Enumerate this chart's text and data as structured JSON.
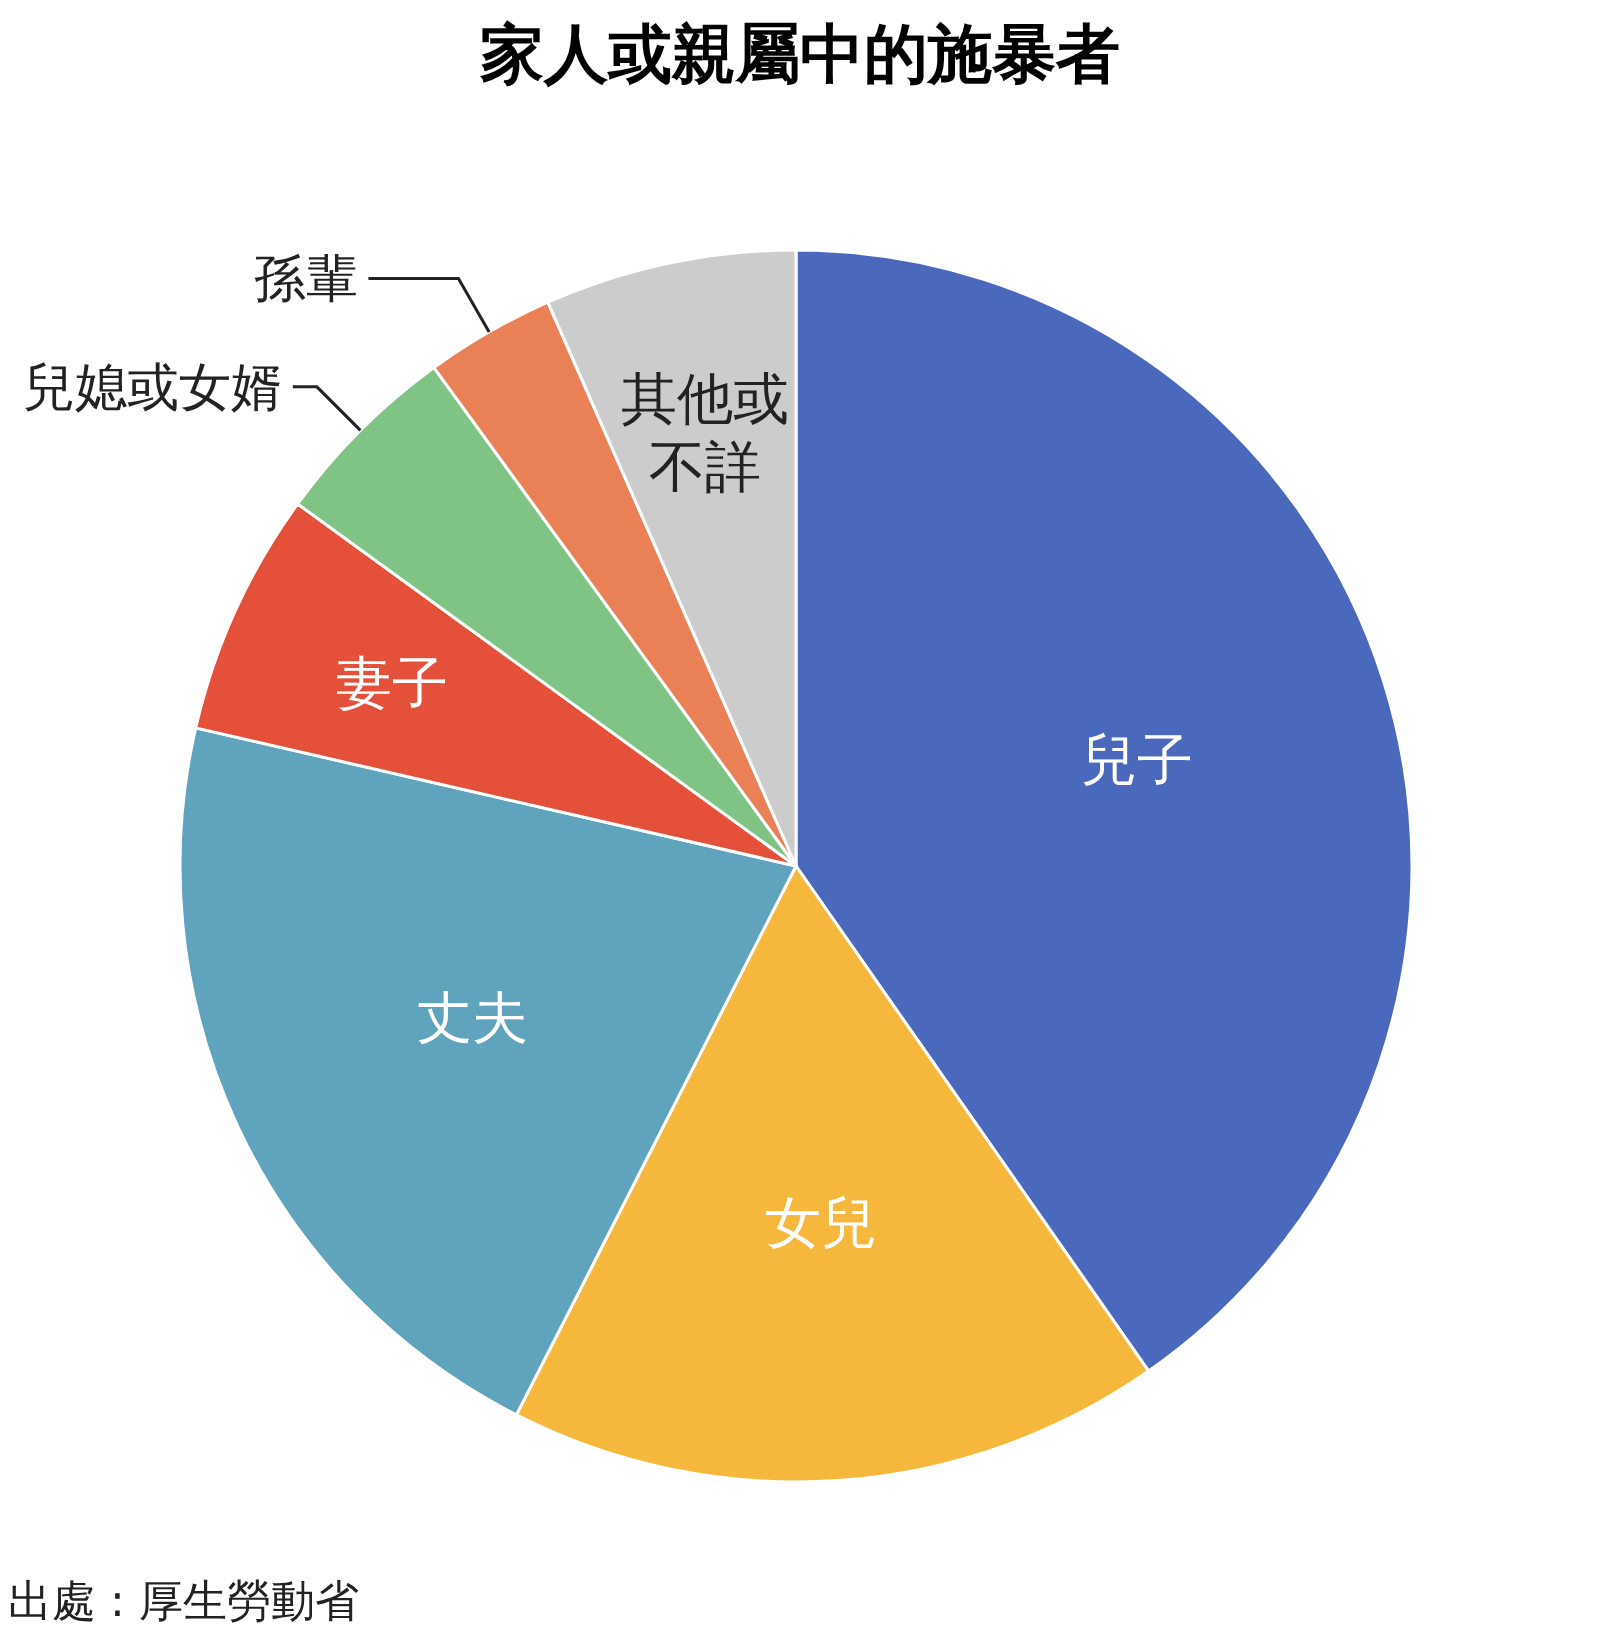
{
  "chart_data": {
    "type": "pie",
    "title": "家人或親屬中的施暴者",
    "categories": [
      "兒子",
      "女兒",
      "丈夫",
      "妻子",
      "兒媳或女婿",
      "孫輩",
      "其他或不詳"
    ],
    "values": [
      40.3,
      17.2,
      21.1,
      6.4,
      5.0,
      3.4,
      6.6
    ],
    "colors": [
      "#4a69bd",
      "#f5b83d",
      "#5fa3bd",
      "#e4503a",
      "#80c485",
      "#e98056",
      "#cccccc"
    ],
    "annotations": [
      "出處 : 厚生勞動省"
    ]
  }
}
